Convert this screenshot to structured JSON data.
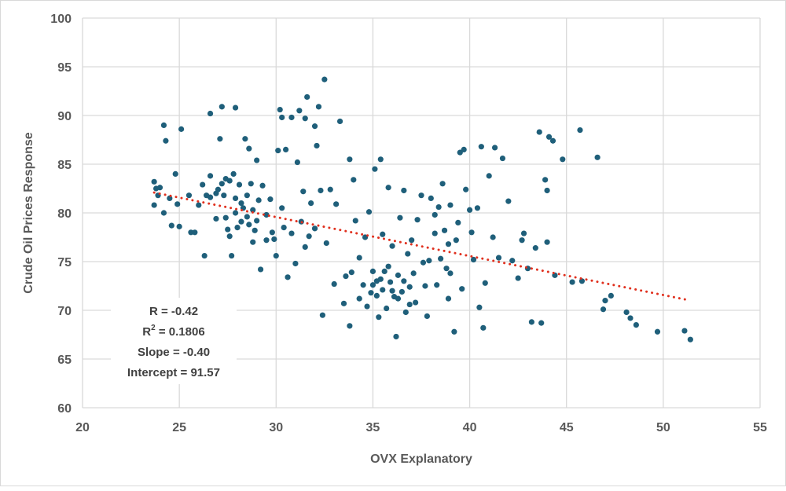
{
  "chart_data": {
    "type": "scatter",
    "xlabel": "OVX Explanatory",
    "ylabel": "Crude Oil Prices Response",
    "xlim": [
      20,
      55
    ],
    "ylim": [
      60,
      100
    ],
    "xticks": [
      "20",
      "25",
      "30",
      "35",
      "40",
      "45",
      "50",
      "55"
    ],
    "yticks": [
      "60",
      "65",
      "70",
      "75",
      "80",
      "85",
      "90",
      "95",
      "100"
    ],
    "grid": true,
    "point_color": "#1f5f7a",
    "trendline_color": "#e0301e",
    "trendline": {
      "slope": -0.4,
      "intercept": 91.57,
      "x_range": [
        23.7,
        51.3
      ],
      "style": "dotted"
    },
    "annotation": {
      "r": "R = -0.42",
      "r2_prefix": "R",
      "r2_sup": "2",
      "r2_value": " = 0.1806",
      "slope": "Slope = -0.40",
      "intercept": "Intercept = 91.57"
    },
    "points": [
      [
        23.7,
        83.2
      ],
      [
        23.8,
        82.5
      ],
      [
        23.9,
        81.8
      ],
      [
        24,
        82.6
      ],
      [
        23.7,
        80.8
      ],
      [
        24.2,
        80
      ],
      [
        24.2,
        89
      ],
      [
        24.3,
        87.4
      ],
      [
        24.5,
        81.5
      ],
      [
        24.6,
        78.7
      ],
      [
        24.8,
        84
      ],
      [
        25,
        78.6
      ],
      [
        24.9,
        80.9
      ],
      [
        25.1,
        88.6
      ],
      [
        25.5,
        81.8
      ],
      [
        25.6,
        78
      ],
      [
        25.8,
        78
      ],
      [
        26,
        80.8
      ],
      [
        26.2,
        82.9
      ],
      [
        26.4,
        81.8
      ],
      [
        26.3,
        75.6
      ],
      [
        26.6,
        81.6
      ],
      [
        26.6,
        83.8
      ],
      [
        26.6,
        90.2
      ],
      [
        26.9,
        79.4
      ],
      [
        27,
        82.4
      ],
      [
        27.2,
        90.9
      ],
      [
        27.1,
        87.6
      ],
      [
        27.2,
        83
      ],
      [
        27.3,
        81.8
      ],
      [
        27.4,
        79.5
      ],
      [
        27.5,
        78.3
      ],
      [
        27.6,
        77.6
      ],
      [
        27.6,
        83.3
      ],
      [
        27.8,
        84
      ],
      [
        27.7,
        75.6
      ],
      [
        27.9,
        80
      ],
      [
        27.9,
        90.8
      ],
      [
        28,
        78.5
      ],
      [
        28.1,
        82.9
      ],
      [
        28.2,
        79.1
      ],
      [
        28.3,
        80.5
      ],
      [
        28.4,
        87.6
      ],
      [
        28.5,
        81.8
      ],
      [
        28.6,
        78.8
      ],
      [
        28.6,
        86.6
      ],
      [
        28.7,
        83
      ],
      [
        28.8,
        80.3
      ],
      [
        28.8,
        77
      ],
      [
        29,
        85.4
      ],
      [
        29.1,
        81.3
      ],
      [
        29.2,
        74.2
      ],
      [
        29.3,
        82.8
      ],
      [
        29.5,
        79.8
      ],
      [
        29.7,
        81.4
      ],
      [
        29.8,
        78
      ],
      [
        29.9,
        77.3
      ],
      [
        30,
        75.6
      ],
      [
        30.1,
        86.4
      ],
      [
        30.2,
        90.6
      ],
      [
        30.3,
        89.8
      ],
      [
        30.4,
        78.5
      ],
      [
        30.5,
        86.5
      ],
      [
        30.6,
        73.4
      ],
      [
        30.8,
        89.8
      ],
      [
        31,
        74.8
      ],
      [
        31.1,
        85.2
      ],
      [
        31.2,
        90.5
      ],
      [
        31.3,
        79.1
      ],
      [
        31.4,
        82.2
      ],
      [
        31.5,
        89.7
      ],
      [
        31.6,
        91.9
      ],
      [
        31.7,
        77.6
      ],
      [
        31.8,
        81
      ],
      [
        32,
        88.9
      ],
      [
        32.1,
        86.9
      ],
      [
        32.2,
        90.9
      ],
      [
        32.3,
        82.3
      ],
      [
        32.4,
        69.5
      ],
      [
        32.5,
        93.7
      ],
      [
        32.6,
        76.9
      ],
      [
        32.8,
        82.4
      ],
      [
        33,
        72.7
      ],
      [
        33.1,
        80.9
      ],
      [
        33.3,
        89.4
      ],
      [
        33.5,
        70.7
      ],
      [
        33.6,
        73.5
      ],
      [
        33.8,
        85.5
      ],
      [
        33.8,
        68.4
      ],
      [
        34,
        83.4
      ],
      [
        34.1,
        79.2
      ],
      [
        34.3,
        75.4
      ],
      [
        34.5,
        72.6
      ],
      [
        34.6,
        77.5
      ],
      [
        34.8,
        80.1
      ],
      [
        34.9,
        71.8
      ],
      [
        35,
        74
      ],
      [
        35.1,
        84.5
      ],
      [
        35.2,
        73
      ],
      [
        35.3,
        69.3
      ],
      [
        35.4,
        85.5
      ],
      [
        35.5,
        72.1
      ],
      [
        35.5,
        77.8
      ],
      [
        35.6,
        74
      ],
      [
        35.7,
        70.2
      ],
      [
        35.8,
        82.6
      ],
      [
        35.9,
        72.9
      ],
      [
        36,
        76.6
      ],
      [
        36.1,
        71.4
      ],
      [
        36.2,
        67.3
      ],
      [
        36.3,
        73.6
      ],
      [
        36.4,
        79.5
      ],
      [
        36.5,
        71.9
      ],
      [
        36.6,
        82.3
      ],
      [
        36.7,
        69.8
      ],
      [
        36.8,
        75.8
      ],
      [
        36.9,
        72.4
      ],
      [
        37,
        77.2
      ],
      [
        37.2,
        70.8
      ],
      [
        37.3,
        79.3
      ],
      [
        37.5,
        81.8
      ],
      [
        37.6,
        74.9
      ],
      [
        37.7,
        72.5
      ],
      [
        37.8,
        69.4
      ],
      [
        38,
        81.5
      ],
      [
        38.2,
        77.9
      ],
      [
        38.3,
        72.6
      ],
      [
        38.4,
        80.6
      ],
      [
        38.5,
        75.3
      ],
      [
        38.6,
        83
      ],
      [
        38.7,
        78.2
      ],
      [
        38.8,
        74.3
      ],
      [
        38.9,
        71.2
      ],
      [
        39,
        80.8
      ],
      [
        39.2,
        67.8
      ],
      [
        39.3,
        77.2
      ],
      [
        39.5,
        86.2
      ],
      [
        39.6,
        72.2
      ],
      [
        39.7,
        86.5
      ],
      [
        39.8,
        82.4
      ],
      [
        40,
        80.3
      ],
      [
        40.1,
        78
      ],
      [
        40.2,
        75.2
      ],
      [
        40.4,
        80.5
      ],
      [
        40.5,
        70.3
      ],
      [
        40.6,
        86.8
      ],
      [
        40.7,
        68.2
      ],
      [
        40.8,
        72.8
      ],
      [
        41,
        83.8
      ],
      [
        41.2,
        77.5
      ],
      [
        41.3,
        86.7
      ],
      [
        41.5,
        75.4
      ],
      [
        41.7,
        85.6
      ],
      [
        42,
        81.2
      ],
      [
        42.2,
        75.1
      ],
      [
        42.5,
        73.3
      ],
      [
        42.7,
        77.2
      ],
      [
        42.8,
        77.9
      ],
      [
        43,
        74.3
      ],
      [
        43.2,
        68.8
      ],
      [
        43.4,
        76.4
      ],
      [
        43.6,
        88.3
      ],
      [
        43.7,
        68.7
      ],
      [
        43.9,
        83.4
      ],
      [
        44,
        82.3
      ],
      [
        44,
        77
      ],
      [
        44.1,
        87.8
      ],
      [
        44.3,
        87.4
      ],
      [
        44.4,
        73.6
      ],
      [
        44.8,
        85.5
      ],
      [
        45.3,
        72.9
      ],
      [
        45.7,
        88.5
      ],
      [
        45.8,
        73
      ],
      [
        46.6,
        85.7
      ],
      [
        46.9,
        70.1
      ],
      [
        47,
        71
      ],
      [
        47.3,
        71.5
      ],
      [
        48.1,
        69.8
      ],
      [
        48.3,
        69.2
      ],
      [
        48.6,
        68.5
      ],
      [
        49.7,
        67.8
      ],
      [
        51.1,
        67.9
      ],
      [
        51.4,
        67
      ],
      [
        35.2,
        71.5
      ],
      [
        35.4,
        73.2
      ],
      [
        35.8,
        74.5
      ],
      [
        36.0,
        72.0
      ],
      [
        36.3,
        71.2
      ],
      [
        36.6,
        73.0
      ],
      [
        34.7,
        70.4
      ],
      [
        35.0,
        72.6
      ],
      [
        37.1,
        73.8
      ],
      [
        36.9,
        70.6
      ],
      [
        33.9,
        73.9
      ],
      [
        34.3,
        71.2
      ],
      [
        29.0,
        79.2
      ],
      [
        28.5,
        79.6
      ],
      [
        28.9,
        78.2
      ],
      [
        27.9,
        81.5
      ],
      [
        28.2,
        81.0
      ],
      [
        27.4,
        83.5
      ],
      [
        26.9,
        82.0
      ],
      [
        29.5,
        77.2
      ],
      [
        30.8,
        77.9
      ],
      [
        31.5,
        76.5
      ],
      [
        32.0,
        78.4
      ],
      [
        30.3,
        80.5
      ],
      [
        38.2,
        79.8
      ],
      [
        39.4,
        79.0
      ],
      [
        38.9,
        76.8
      ],
      [
        37.9,
        75.1
      ],
      [
        39.0,
        73.8
      ]
    ]
  }
}
